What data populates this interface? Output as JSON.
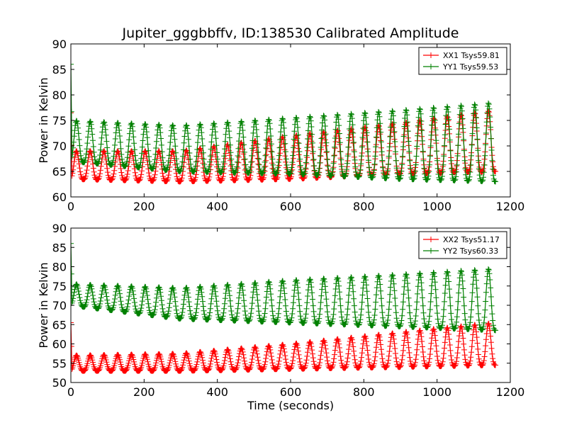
{
  "figure": {
    "title": "Jupiter_gggbbffv, ID:138530 Calibrated Amplitude"
  },
  "chart_data": [
    {
      "type": "line",
      "title": "Jupiter_gggbbffv, ID:138530 Calibrated Amplitude",
      "xlabel": "",
      "ylabel": "Power in Kelvin",
      "xlim": [
        0,
        1200
      ],
      "ylim": [
        60,
        90
      ],
      "x_ticks": [
        "0",
        "200",
        "400",
        "600",
        "800",
        "1000",
        "1200"
      ],
      "y_ticks": [
        "60",
        "65",
        "70",
        "75",
        "80",
        "85",
        "90"
      ],
      "legend_position": "top-right",
      "marker": "+",
      "grid": false,
      "period_seconds": 37.5,
      "duration_seconds": 1160,
      "series": [
        {
          "name": "XX1 Tsys59.81",
          "color": "#ff0000",
          "trough": {
            "x": [
              0,
              300,
              600,
              900,
              1160
            ],
            "y": [
              63.5,
              63,
              63.5,
              64.5,
              65
            ]
          },
          "peak": {
            "x": [
              0,
              300,
              600,
              900,
              1160
            ],
            "y": [
              69,
              69,
              72,
              74.5,
              77
            ]
          },
          "initial_spike": 76.5
        },
        {
          "name": "YY1 Tsys59.53",
          "color": "#008000",
          "trough": {
            "x": [
              0,
              300,
              600,
              900,
              1160
            ],
            "y": [
              67,
              65,
              64.5,
              63.5,
              63
            ]
          },
          "peak": {
            "x": [
              0,
              300,
              600,
              900,
              1160
            ],
            "y": [
              75,
              74,
              75.5,
              77,
              78.5
            ]
          },
          "initial_spike": 86
        }
      ]
    },
    {
      "type": "line",
      "title": "",
      "xlabel": "Time (seconds)",
      "ylabel": "Power in Kelvin",
      "xlim": [
        0,
        1200
      ],
      "ylim": [
        50,
        90
      ],
      "x_ticks": [
        "0",
        "200",
        "400",
        "600",
        "800",
        "1000",
        "1200"
      ],
      "y_ticks": [
        "50",
        "55",
        "60",
        "65",
        "70",
        "75",
        "80",
        "85",
        "90"
      ],
      "legend_position": "top-right",
      "marker": "+",
      "grid": false,
      "period_seconds": 37.5,
      "duration_seconds": 1160,
      "series": [
        {
          "name": "XX2 Tsys51.17",
          "color": "#ff0000",
          "trough": {
            "x": [
              0,
              300,
              600,
              900,
              1160
            ],
            "y": [
              53,
              53,
              53.5,
              54,
              54.5
            ]
          },
          "peak": {
            "x": [
              0,
              300,
              600,
              900,
              1160
            ],
            "y": [
              57,
              57.5,
              60,
              63,
              65.5
            ]
          },
          "initial_spike": 65.5
        },
        {
          "name": "YY2 Tsys60.33",
          "color": "#008000",
          "trough": {
            "x": [
              0,
              300,
              600,
              900,
              1160
            ],
            "y": [
              70,
              66.5,
              65.5,
              64.5,
              63.5
            ]
          },
          "peak": {
            "x": [
              0,
              300,
              600,
              900,
              1160
            ],
            "y": [
              75.5,
              74.5,
              76.5,
              78,
              79.5
            ]
          },
          "initial_spike": 86
        }
      ]
    }
  ]
}
